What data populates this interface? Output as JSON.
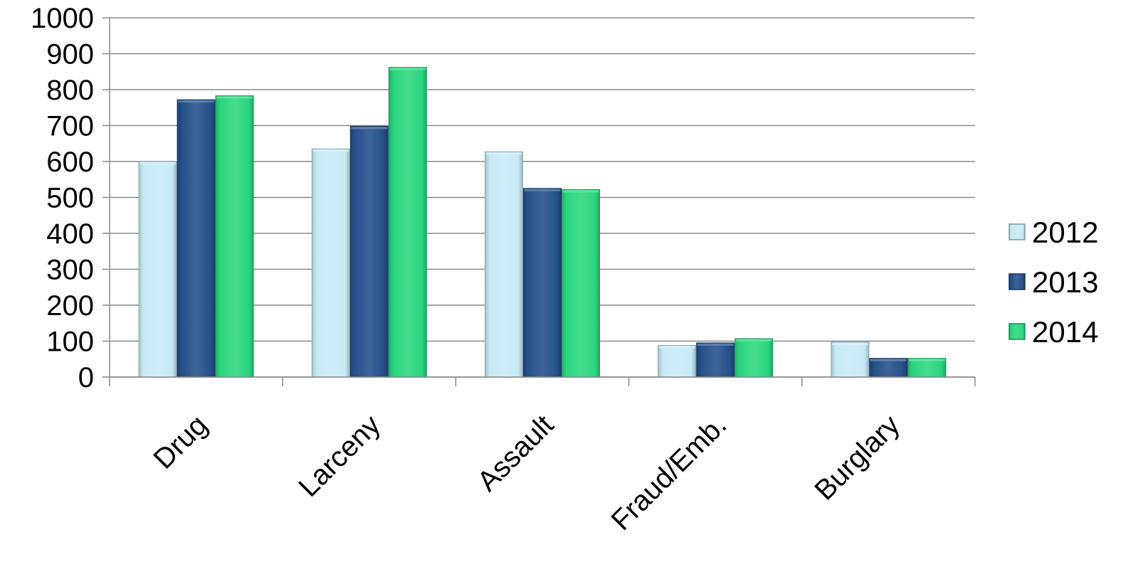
{
  "chart_data": {
    "type": "bar",
    "title": "",
    "xlabel": "",
    "ylabel": "",
    "categories": [
      "Drug",
      "Larceny",
      "Assault",
      "Fraud/Emb.",
      "Burglary"
    ],
    "series": [
      {
        "name": "2012",
        "values": [
          600,
          635,
          627,
          88,
          97
        ],
        "color": "#c6ebf5"
      },
      {
        "name": "2013",
        "values": [
          772,
          698,
          525,
          95,
          52
        ],
        "color": "#24508a"
      },
      {
        "name": "2014",
        "values": [
          783,
          862,
          522,
          107,
          52
        ],
        "color": "#2ad67f"
      }
    ],
    "ylim": [
      0,
      1000
    ],
    "yticks": [
      0,
      100,
      200,
      300,
      400,
      500,
      600,
      700,
      800,
      900,
      1000
    ],
    "grid": true,
    "legend_position": "right"
  }
}
